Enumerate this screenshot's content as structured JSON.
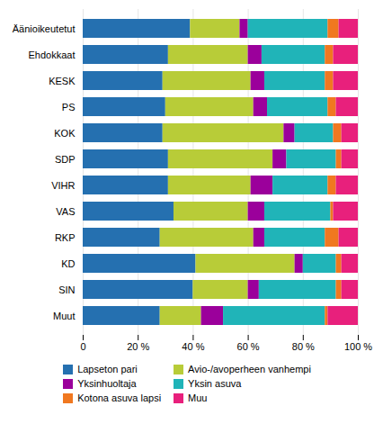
{
  "chart_data": {
    "type": "bar",
    "orientation": "horizontal",
    "stacked": true,
    "grid": true,
    "legend": "bottom",
    "categories": [
      "Äänioikeutetut",
      "Ehdokkaat",
      "KESK",
      "PS",
      "KOK",
      "SDP",
      "VIHR",
      "VAS",
      "RKP",
      "KD",
      "SIN",
      "Muut"
    ],
    "series": [
      {
        "name": "Lapseton pari",
        "color": "#2570b0",
        "values": [
          39,
          31,
          29,
          30,
          29,
          31,
          31,
          33,
          28,
          41,
          40,
          28
        ]
      },
      {
        "name": "Avio-/avoperheen vanhempi",
        "color": "#b8cc38",
        "values": [
          18,
          29,
          32,
          32,
          44,
          38,
          30,
          27,
          34,
          36,
          20,
          15
        ]
      },
      {
        "name": "Yksinhuoltaja",
        "color": "#9b009b",
        "values": [
          3,
          5,
          5,
          5,
          4,
          5,
          8,
          6,
          4,
          3,
          4,
          8
        ]
      },
      {
        "name": "Yksin asuva",
        "color": "#20b4b8",
        "values": [
          29,
          23,
          22,
          22,
          14,
          18,
          20,
          24,
          22,
          12,
          28,
          37
        ]
      },
      {
        "name": "Kotona asuva lapsi",
        "color": "#f07820",
        "values": [
          4,
          3,
          3,
          3,
          3,
          2,
          3,
          1,
          5,
          2,
          2,
          1
        ]
      },
      {
        "name": "Muu",
        "color": "#e8207c",
        "values": [
          7,
          9,
          9,
          8,
          6,
          6,
          8,
          9,
          7,
          6,
          6,
          11
        ]
      }
    ],
    "xlim": [
      0,
      100
    ],
    "xticks": [
      0,
      {
        "value": 20,
        "label": "20 %"
      },
      {
        "value": 40,
        "label": "40 %"
      },
      {
        "value": 60,
        "label": "60 %"
      },
      {
        "value": 80,
        "label": "80 %"
      },
      {
        "value": 100,
        "label": "100 %"
      }
    ]
  }
}
